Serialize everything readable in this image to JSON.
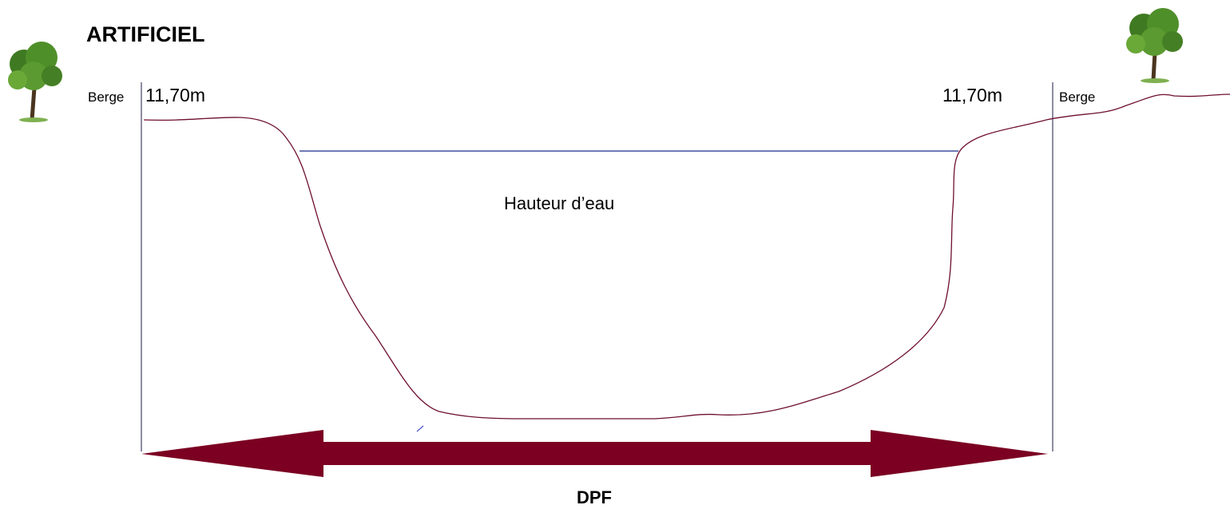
{
  "title": "ARTIFICIEL",
  "left_bank": {
    "label": "Berge",
    "height": "11,70m"
  },
  "right_bank": {
    "label": "Berge",
    "height": "11,70m"
  },
  "water_label": "Hauteur d’eau",
  "width_label": "DPF"
}
